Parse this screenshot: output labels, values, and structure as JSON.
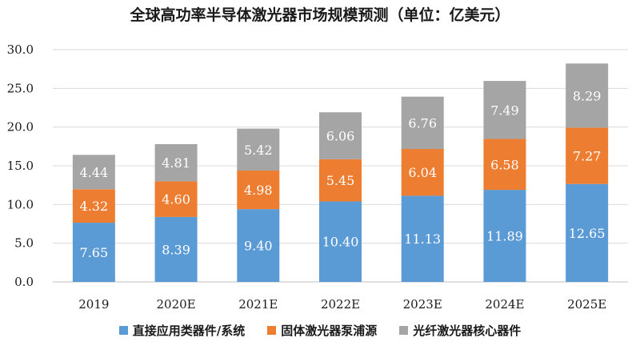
{
  "chart_data": {
    "type": "bar",
    "stacked": true,
    "title": "全球高功率半导体激光器市场规模预测（单位：亿美元）",
    "categories": [
      "2019",
      "2020E",
      "2021E",
      "2022E",
      "2023E",
      "2024E",
      "2025E"
    ],
    "ylim": [
      0,
      30
    ],
    "yticks": [
      "0.0",
      "5.0",
      "10.0",
      "15.0",
      "20.0",
      "25.0",
      "30.0"
    ],
    "grid": true,
    "legend_position": "bottom",
    "series": [
      {
        "name": "直接应用类器件/系统",
        "color": "#5B9BD5",
        "values": [
          7.65,
          8.39,
          9.4,
          10.4,
          11.13,
          11.89,
          12.65
        ],
        "labels": [
          "7.65",
          "8.39",
          "9.40",
          "10.40",
          "11.13",
          "11.89",
          "12.65"
        ]
      },
      {
        "name": "固体激光器泵浦源",
        "color": "#ED7D31",
        "values": [
          4.32,
          4.6,
          4.98,
          5.45,
          6.04,
          6.58,
          7.27
        ],
        "labels": [
          "4.32",
          "4.60",
          "4.98",
          "5.45",
          "6.04",
          "6.58",
          "7.27"
        ]
      },
      {
        "name": "光纤激光器核心器件",
        "color": "#A5A5A5",
        "values": [
          4.44,
          4.81,
          5.42,
          6.06,
          6.76,
          7.49,
          8.29
        ],
        "labels": [
          "4.44",
          "4.81",
          "5.42",
          "6.06",
          "6.76",
          "7.49",
          "8.29"
        ]
      }
    ]
  }
}
